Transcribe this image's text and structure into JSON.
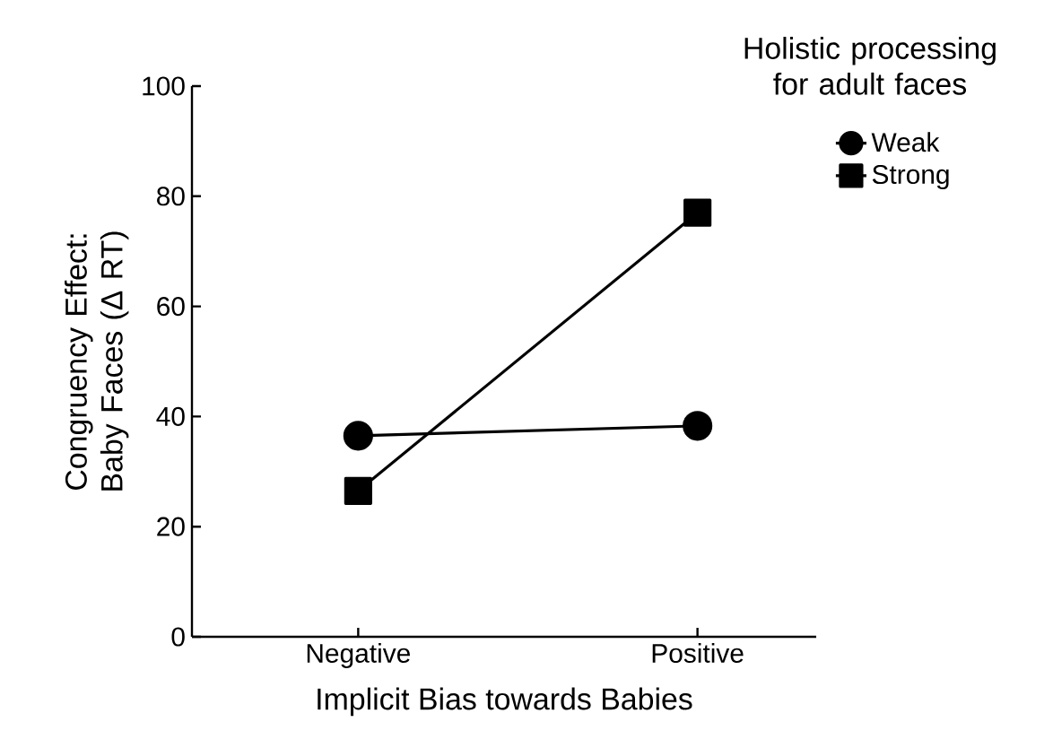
{
  "chart_data": {
    "type": "line",
    "xlabel": "Implicit Bias towards Babies",
    "ylabel": "Congruency Effect: Baby Faces (Δ RT)",
    "legend_title": "Holistic processing for adult faces",
    "categories": [
      "Negative",
      "Positive"
    ],
    "series": [
      {
        "name": "Weak",
        "color": "#000000",
        "marker": "circle",
        "values": [
          36.5,
          38.3
        ]
      },
      {
        "name": "Strong",
        "color": "#000000",
        "marker": "square",
        "values": [
          26.5,
          77
        ]
      }
    ],
    "ylim": [
      0,
      100
    ],
    "yticks": [
      0,
      20,
      40,
      60,
      80,
      100
    ],
    "legend": "top right",
    "line_style": "solid"
  }
}
